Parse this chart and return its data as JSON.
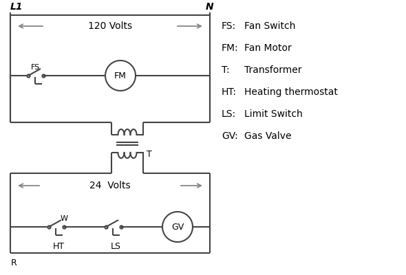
{
  "background_color": "#ffffff",
  "line_color": "#444444",
  "arrow_color": "#888888",
  "legend_items": [
    [
      "FS:",
      "Fan Switch"
    ],
    [
      "FM:",
      "Fan Motor"
    ],
    [
      "T:",
      "Transformer"
    ],
    [
      "HT:",
      "Heating thermostat"
    ],
    [
      "LS:",
      "Limit Switch"
    ],
    [
      "GV:",
      "Gas Valve"
    ]
  ],
  "label_L1": "L1",
  "label_N": "N",
  "label_120": "120 Volts",
  "label_24": "24  Volts",
  "label_T": "T",
  "label_FS": "FS",
  "label_FM": "FM",
  "label_GV": "GV",
  "label_R": "R",
  "label_W": "W",
  "label_HT": "HT",
  "label_LS": "LS"
}
